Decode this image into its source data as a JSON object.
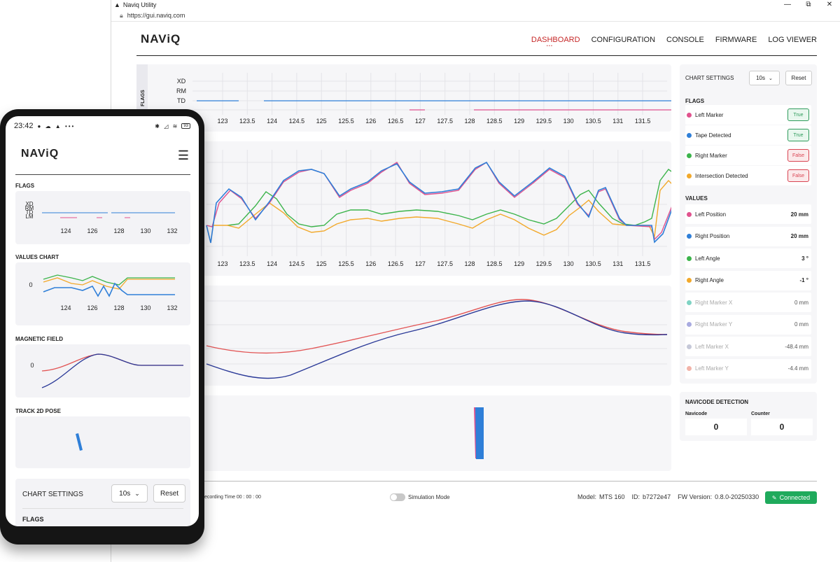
{
  "window": {
    "title": "Naviq Utility",
    "url": "https://gui.naviq.com",
    "minimize": "—",
    "restore": "⧉",
    "close": "✕"
  },
  "header": {
    "logo": "NAViQ",
    "nav": [
      "DASHBOARD",
      "CONFIGURATION",
      "CONSOLE",
      "FIRMWARE",
      "LOG VIEWER"
    ]
  },
  "flags_chart": {
    "side_label": "FLAGS",
    "rows": [
      "XD",
      "RM",
      "TD",
      "LM"
    ],
    "x_ticks": [
      "123",
      "123.5",
      "124",
      "124.5",
      "125",
      "125.5",
      "126",
      "126.5",
      "127",
      "127.5",
      "128",
      "128.5",
      "129",
      "129.5",
      "130",
      "130.5",
      "131",
      "131.5"
    ]
  },
  "chart_settings": {
    "title": "CHART SETTINGS",
    "window_value": "10s",
    "reset_label": "Reset"
  },
  "flags": {
    "title": "FLAGS",
    "items": [
      {
        "label": "Left Marker",
        "color": "#e0528e",
        "state": "True"
      },
      {
        "label": "Tape Detected",
        "color": "#2f7fd8",
        "state": "True"
      },
      {
        "label": "Right Marker",
        "color": "#3cb44b",
        "state": "False"
      },
      {
        "label": "Intersection Detected",
        "color": "#f2a92b",
        "state": "False"
      }
    ]
  },
  "values": {
    "title": "VALUES",
    "items": [
      {
        "label": "Left Position",
        "color": "#e0528e",
        "value": "20 mm",
        "muted": false
      },
      {
        "label": "Right Position",
        "color": "#2f7fd8",
        "value": "20 mm",
        "muted": false
      },
      {
        "label": "Left Angle",
        "color": "#3cb44b",
        "value": "3 °",
        "muted": false
      },
      {
        "label": "Right Angle",
        "color": "#f2a92b",
        "value": "-1 °",
        "muted": false
      },
      {
        "label": "Right Marker X",
        "color": "#7fd3c4",
        "value": "0 mm",
        "muted": true
      },
      {
        "label": "Right Marker Y",
        "color": "#a9abe0",
        "value": "0 mm",
        "muted": true
      },
      {
        "label": "Left Marker X",
        "color": "#c5c8d8",
        "value": "-48.4 mm",
        "muted": true
      },
      {
        "label": "Left Marker Y",
        "color": "#f2b3a9",
        "value": "-4.4 mm",
        "muted": true
      }
    ]
  },
  "navicode": {
    "title": "NAVICODE DETECTION",
    "navicode_label": "Navicode",
    "navicode_value": "0",
    "counter_label": "Counter",
    "counter_value": "0"
  },
  "footer": {
    "recording": "ecording Time 00 : 00 : 00",
    "simulation": "Simulation Mode",
    "model_label": "Model:",
    "model": "MTS 160",
    "id_label": "ID:",
    "id": "b7272e47",
    "fw_label": "FW Version:",
    "fw": "0.8.0-20250330",
    "connection": "Connected"
  },
  "phone": {
    "time": "23:42",
    "battery": "93",
    "logo": "NAViQ",
    "flags_title": "FLAGS",
    "values_title": "VALUES CHART",
    "magnetic_title": "MAGNETIC FIELD",
    "pose_title": "TRACK 2D POSE",
    "settings_title": "CHART SETTINGS",
    "window_value": "10s",
    "reset_label": "Reset",
    "flags_label": "FLAGS",
    "flag_rows": [
      "XD",
      "RM",
      "TD",
      "LM"
    ],
    "x_ticks": [
      "124",
      "126",
      "128",
      "130",
      "132"
    ],
    "zero": "0"
  }
}
